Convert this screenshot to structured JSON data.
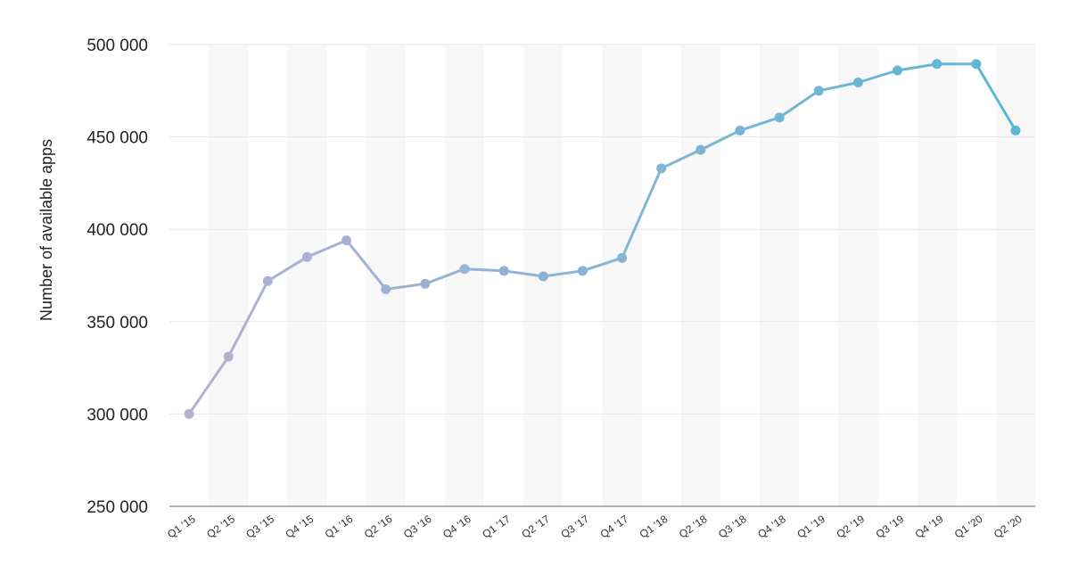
{
  "chart_data": {
    "type": "line",
    "title": "",
    "xlabel": "",
    "ylabel": "Number of available apps",
    "ylim": [
      250000,
      500000
    ],
    "yticks": [
      250000,
      300000,
      350000,
      400000,
      450000,
      500000
    ],
    "ytick_labels": [
      "250 000",
      "300 000",
      "350 000",
      "400 000",
      "450 000",
      "500 000"
    ],
    "grid": true,
    "legend": "none",
    "colors": {
      "start": "#b4b0d4",
      "end": "#5ab8d4",
      "band": "#f7f7f8",
      "grid": "#e6e6e6"
    },
    "categories": [
      "Q1 '15",
      "Q2 '15",
      "Q3 '15",
      "Q4 '15",
      "Q1 '16",
      "Q2 '16",
      "Q3 '16",
      "Q4 '16",
      "Q1 '17",
      "Q2 '17",
      "Q3 '17",
      "Q4 '17",
      "Q1 '18",
      "Q2 '18",
      "Q3 '18",
      "Q4 '18",
      "Q1 '19",
      "Q2 '19",
      "Q3 '19",
      "Q4 '19",
      "Q1 '20",
      "Q2 '20"
    ],
    "series": [
      {
        "values": [
          300000,
          331000,
          372000,
          385000,
          394000,
          367500,
          370500,
          378500,
          377500,
          374500,
          377500,
          384500,
          433000,
          443000,
          453500,
          460500,
          475000,
          479500,
          486000,
          489500,
          489500,
          453500
        ]
      }
    ]
  }
}
